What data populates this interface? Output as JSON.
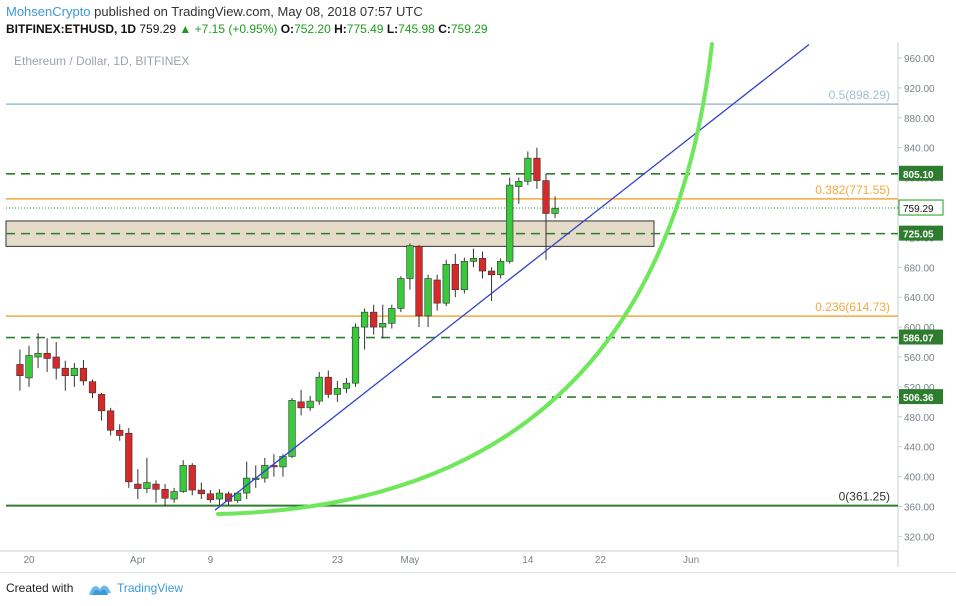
{
  "header": {
    "author": "MohsenCrypto",
    "published": "published on TradingView.com, May 08, 2018 07:57 UTC",
    "symbol": "BITFINEX:ETHUSD, 1D",
    "price": "759.29",
    "change": "+7.15 (+0.95%)",
    "o_label": "O:",
    "o_val": "752.20",
    "h_label": "H:",
    "h_val": "775.49",
    "l_label": "L:",
    "l_val": "745.98",
    "c_label": "C:",
    "c_val": "759.29"
  },
  "legend": "Ethereum / Dollar, 1D, BITFINEX",
  "footer": {
    "created": "Created with",
    "brand": "TradingView"
  },
  "colors": {
    "up": "#3ac93a",
    "down": "#d62a2a",
    "fib": "#f3a93a",
    "fib_top": "#9fbfd0",
    "support": "#2e7d2e",
    "trend": "#3344cc",
    "curve": "#6ee85a",
    "zone_fill": "#d8cdb0",
    "tag_bg": "#2e7d2e",
    "tag_price": "#1a9e1a"
  },
  "chart_data": {
    "type": "candlestick",
    "y_axis": {
      "min": 320,
      "max": 960,
      "ticks": [
        960,
        920,
        880,
        840,
        800,
        760,
        720,
        680,
        640,
        600,
        560,
        520,
        480,
        440,
        400,
        360,
        320
      ]
    },
    "x_axis": {
      "labels": [
        {
          "text": "20",
          "day": 0
        },
        {
          "text": "Apr",
          "day": 12
        },
        {
          "text": "9",
          "day": 20
        },
        {
          "text": "23",
          "day": 34
        },
        {
          "text": "May",
          "day": 42
        },
        {
          "text": "14",
          "day": 55
        },
        {
          "text": "22",
          "day": 63
        },
        {
          "text": "Jun",
          "day": 73
        }
      ]
    },
    "candles": [
      {
        "day": -1,
        "o": 550,
        "h": 570,
        "l": 515,
        "c": 535
      },
      {
        "day": 0,
        "o": 532,
        "h": 575,
        "l": 520,
        "c": 562
      },
      {
        "day": 1,
        "o": 560,
        "h": 592,
        "l": 545,
        "c": 565
      },
      {
        "day": 2,
        "o": 565,
        "h": 585,
        "l": 540,
        "c": 558
      },
      {
        "day": 3,
        "o": 560,
        "h": 580,
        "l": 530,
        "c": 545
      },
      {
        "day": 4,
        "o": 545,
        "h": 555,
        "l": 515,
        "c": 535
      },
      {
        "day": 5,
        "o": 535,
        "h": 552,
        "l": 520,
        "c": 545
      },
      {
        "day": 6,
        "o": 545,
        "h": 556,
        "l": 522,
        "c": 528
      },
      {
        "day": 7,
        "o": 527,
        "h": 530,
        "l": 505,
        "c": 512
      },
      {
        "day": 8,
        "o": 510,
        "h": 512,
        "l": 475,
        "c": 488
      },
      {
        "day": 9,
        "o": 488,
        "h": 492,
        "l": 455,
        "c": 462
      },
      {
        "day": 10,
        "o": 462,
        "h": 470,
        "l": 448,
        "c": 455
      },
      {
        "day": 11,
        "o": 458,
        "h": 465,
        "l": 385,
        "c": 393
      },
      {
        "day": 12,
        "o": 390,
        "h": 410,
        "l": 370,
        "c": 384
      },
      {
        "day": 13,
        "o": 384,
        "h": 425,
        "l": 378,
        "c": 392
      },
      {
        "day": 14,
        "o": 390,
        "h": 395,
        "l": 365,
        "c": 383
      },
      {
        "day": 15,
        "o": 383,
        "h": 390,
        "l": 360,
        "c": 371
      },
      {
        "day": 16,
        "o": 370,
        "h": 385,
        "l": 365,
        "c": 380
      },
      {
        "day": 17,
        "o": 380,
        "h": 422,
        "l": 378,
        "c": 415
      },
      {
        "day": 18,
        "o": 415,
        "h": 418,
        "l": 375,
        "c": 382
      },
      {
        "day": 19,
        "o": 382,
        "h": 392,
        "l": 370,
        "c": 377
      },
      {
        "day": 20,
        "o": 377,
        "h": 382,
        "l": 365,
        "c": 369
      },
      {
        "day": 21,
        "o": 370,
        "h": 383,
        "l": 362,
        "c": 378
      },
      {
        "day": 22,
        "o": 377,
        "h": 380,
        "l": 362,
        "c": 367
      },
      {
        "day": 23,
        "o": 368,
        "h": 380,
        "l": 365,
        "c": 378
      },
      {
        "day": 24,
        "o": 378,
        "h": 420,
        "l": 370,
        "c": 398
      },
      {
        "day": 25,
        "o": 396,
        "h": 415,
        "l": 385,
        "c": 398
      },
      {
        "day": 26,
        "o": 398,
        "h": 425,
        "l": 392,
        "c": 415
      },
      {
        "day": 27,
        "o": 415,
        "h": 430,
        "l": 400,
        "c": 413
      },
      {
        "day": 28,
        "o": 413,
        "h": 430,
        "l": 400,
        "c": 427
      },
      {
        "day": 29,
        "o": 427,
        "h": 505,
        "l": 425,
        "c": 502
      },
      {
        "day": 30,
        "o": 500,
        "h": 516,
        "l": 482,
        "c": 492
      },
      {
        "day": 31,
        "o": 492,
        "h": 508,
        "l": 488,
        "c": 501
      },
      {
        "day": 32,
        "o": 501,
        "h": 540,
        "l": 496,
        "c": 533
      },
      {
        "day": 33,
        "o": 533,
        "h": 542,
        "l": 505,
        "c": 510
      },
      {
        "day": 34,
        "o": 510,
        "h": 528,
        "l": 500,
        "c": 518
      },
      {
        "day": 35,
        "o": 518,
        "h": 532,
        "l": 512,
        "c": 525
      },
      {
        "day": 36,
        "o": 525,
        "h": 605,
        "l": 520,
        "c": 600
      },
      {
        "day": 37,
        "o": 600,
        "h": 625,
        "l": 570,
        "c": 620
      },
      {
        "day": 38,
        "o": 620,
        "h": 630,
        "l": 590,
        "c": 600
      },
      {
        "day": 39,
        "o": 600,
        "h": 630,
        "l": 585,
        "c": 605
      },
      {
        "day": 40,
        "o": 605,
        "h": 630,
        "l": 598,
        "c": 625
      },
      {
        "day": 41,
        "o": 625,
        "h": 668,
        "l": 620,
        "c": 665
      },
      {
        "day": 42,
        "o": 665,
        "h": 712,
        "l": 650,
        "c": 709
      },
      {
        "day": 43,
        "o": 708,
        "h": 710,
        "l": 600,
        "c": 615
      },
      {
        "day": 44,
        "o": 615,
        "h": 670,
        "l": 600,
        "c": 665
      },
      {
        "day": 45,
        "o": 663,
        "h": 670,
        "l": 622,
        "c": 632
      },
      {
        "day": 46,
        "o": 632,
        "h": 690,
        "l": 628,
        "c": 684
      },
      {
        "day": 47,
        "o": 684,
        "h": 698,
        "l": 640,
        "c": 650
      },
      {
        "day": 48,
        "o": 650,
        "h": 693,
        "l": 645,
        "c": 688
      },
      {
        "day": 49,
        "o": 688,
        "h": 705,
        "l": 680,
        "c": 692
      },
      {
        "day": 50,
        "o": 692,
        "h": 701,
        "l": 665,
        "c": 675
      },
      {
        "day": 51,
        "o": 675,
        "h": 680,
        "l": 635,
        "c": 670
      },
      {
        "day": 52,
        "o": 670,
        "h": 692,
        "l": 665,
        "c": 688
      },
      {
        "day": 53,
        "o": 688,
        "h": 800,
        "l": 685,
        "c": 790
      },
      {
        "day": 54,
        "o": 788,
        "h": 800,
        "l": 765,
        "c": 795
      },
      {
        "day": 55,
        "o": 795,
        "h": 835,
        "l": 790,
        "c": 826
      },
      {
        "day": 56,
        "o": 826,
        "h": 840,
        "l": 785,
        "c": 796
      },
      {
        "day": 57,
        "o": 796,
        "h": 805,
        "l": 690,
        "c": 752
      },
      {
        "day": 58,
        "o": 752,
        "h": 775,
        "l": 746,
        "c": 759
      }
    ],
    "fib_levels": [
      {
        "label": "0.5(898.29)",
        "value": 898.29,
        "color": "#9fbfd0"
      },
      {
        "label": "0.382(771.55)",
        "value": 771.55,
        "color": "#f3a93a"
      },
      {
        "label": "0.236(614.73)",
        "value": 614.73,
        "color": "#f3a93a"
      },
      {
        "label": "0(361.25)",
        "value": 361.25,
        "color": "#2e7d2e"
      }
    ],
    "support_levels": [
      {
        "value": 805.1,
        "label": "805.10"
      },
      {
        "value": 725.05,
        "label": "725.05"
      },
      {
        "value": 586.07,
        "label": "586.07"
      },
      {
        "value": 506.36,
        "label": "506.36"
      }
    ],
    "last_price": {
      "value": 759.29,
      "label": "759.29"
    },
    "zone": {
      "low": 708,
      "high": 742
    }
  }
}
